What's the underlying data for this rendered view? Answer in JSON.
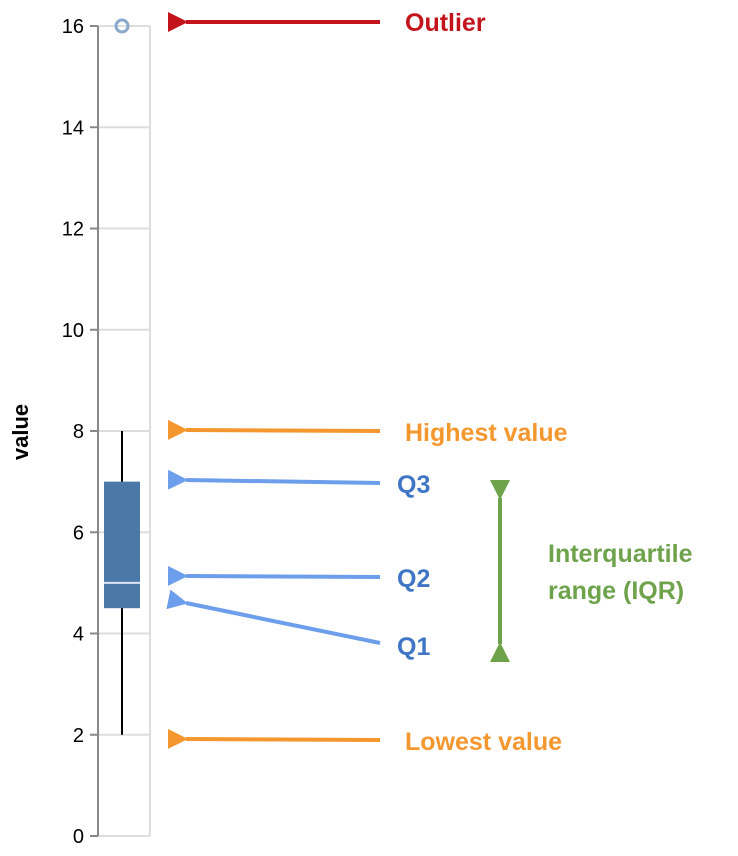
{
  "chart_data": {
    "type": "boxplot",
    "ylabel": "value",
    "ylim": [
      0,
      16
    ],
    "yticks": [
      0,
      2,
      4,
      6,
      8,
      10,
      12,
      14,
      16
    ],
    "grid": true,
    "box": {
      "min": 2,
      "q1": 4.5,
      "median": 5,
      "q3": 7,
      "max": 8,
      "outliers": [
        16
      ]
    },
    "annotations": [
      {
        "id": "outlier",
        "text": "Outlier",
        "color": "#c3141c"
      },
      {
        "id": "highest",
        "text": "Highest value",
        "color": "#f5972f"
      },
      {
        "id": "q3",
        "text": "Q3",
        "color": "#3e75c4"
      },
      {
        "id": "q2",
        "text": "Q2",
        "color": "#3e75c4"
      },
      {
        "id": "q1",
        "text": "Q1",
        "color": "#3e75c4"
      },
      {
        "id": "iqr",
        "lines": [
          "Interquartile",
          "range (IQR)"
        ],
        "color": "#6ea34b"
      },
      {
        "id": "lowest",
        "text": "Lowest value",
        "color": "#f5972f"
      }
    ]
  },
  "colors": {
    "box_fill": "#4c78a8",
    "median_line": "#dbe5f1",
    "whisker": "#000000",
    "outlier_stroke": "#8ba9cc",
    "grid": "#dddddd",
    "axis": "#888888",
    "q_arrow": "#6d9eeb",
    "orange": "#f5972f",
    "red": "#c3141c",
    "green": "#6ea34b"
  }
}
